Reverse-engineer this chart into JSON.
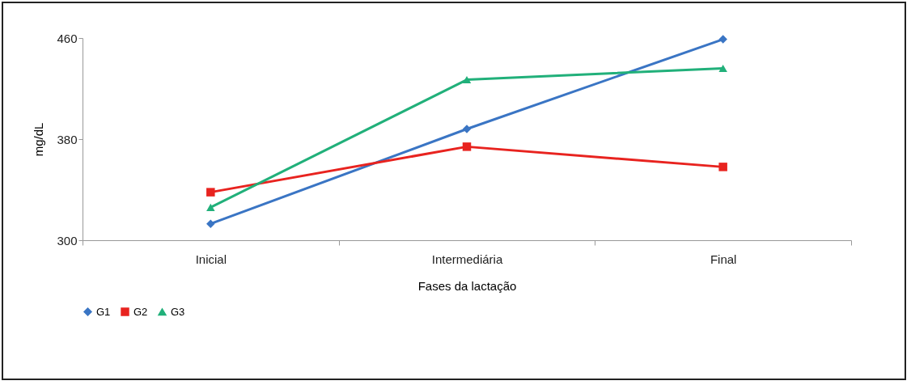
{
  "chart_data": {
    "type": "line",
    "xlabel": "Fases da lactação",
    "ylabel": "mg/dL",
    "categories": [
      "Inicial",
      "Intermediária",
      "Final"
    ],
    "series": [
      {
        "name": "G1",
        "color": "#3a75c4",
        "marker": "diamond",
        "values": [
          313,
          388,
          459
        ]
      },
      {
        "name": "G2",
        "color": "#e8231f",
        "marker": "square",
        "values": [
          338,
          374,
          358
        ]
      },
      {
        "name": "G3",
        "color": "#21b07a",
        "marker": "triangle",
        "values": [
          326,
          427,
          436
        ]
      }
    ],
    "ylim": [
      300,
      460
    ],
    "yticks": [
      300,
      380,
      460
    ],
    "grid": false,
    "legend": "bottom",
    "line_style": "solid"
  }
}
